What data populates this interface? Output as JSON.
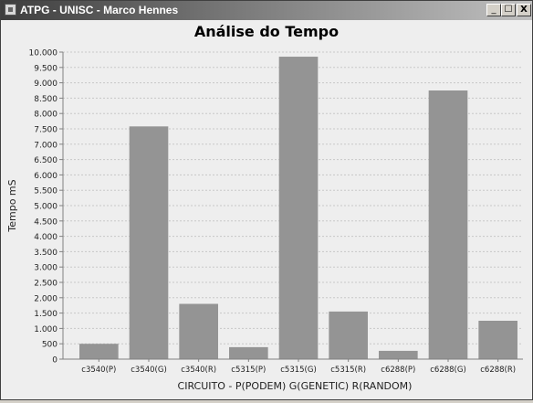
{
  "window": {
    "title": "ATPG - UNISC - Marco Hennes",
    "icon": "app-icon",
    "buttons": {
      "minimize": "_",
      "maximize": "☐",
      "close": "X"
    }
  },
  "chart_data": {
    "type": "bar",
    "title": "Análise do Tempo",
    "xlabel": "CIRCUITO - P(PODEM)  G(GENETIC)  R(RANDOM)",
    "ylabel": "Tempo mS",
    "categories": [
      "c3540(P)",
      "c3540(G)",
      "c3540(R)",
      "c5315(P)",
      "c5315(G)",
      "c5315(R)",
      "c6288(P)",
      "c6288(G)",
      "c6288(R)"
    ],
    "values": [
      500,
      7580,
      1800,
      390,
      9850,
      1550,
      270,
      8750,
      1250
    ],
    "ylim": [
      0,
      10000
    ],
    "yticks": [
      0,
      500,
      1000,
      1500,
      2000,
      2500,
      3000,
      3500,
      4000,
      4500,
      5000,
      5500,
      6000,
      6500,
      7000,
      7500,
      8000,
      8500,
      9000,
      9500,
      10000
    ],
    "ytick_labels": [
      "0",
      "500",
      "1.000",
      "1.500",
      "2.000",
      "2.500",
      "3.000",
      "3.500",
      "4.000",
      "4.500",
      "5.000",
      "5.500",
      "6.000",
      "6.500",
      "7.000",
      "7.500",
      "8.000",
      "8.500",
      "9.000",
      "9.500",
      "10.000"
    ],
    "bar_color": "#949494",
    "grid": true,
    "legend": false
  }
}
